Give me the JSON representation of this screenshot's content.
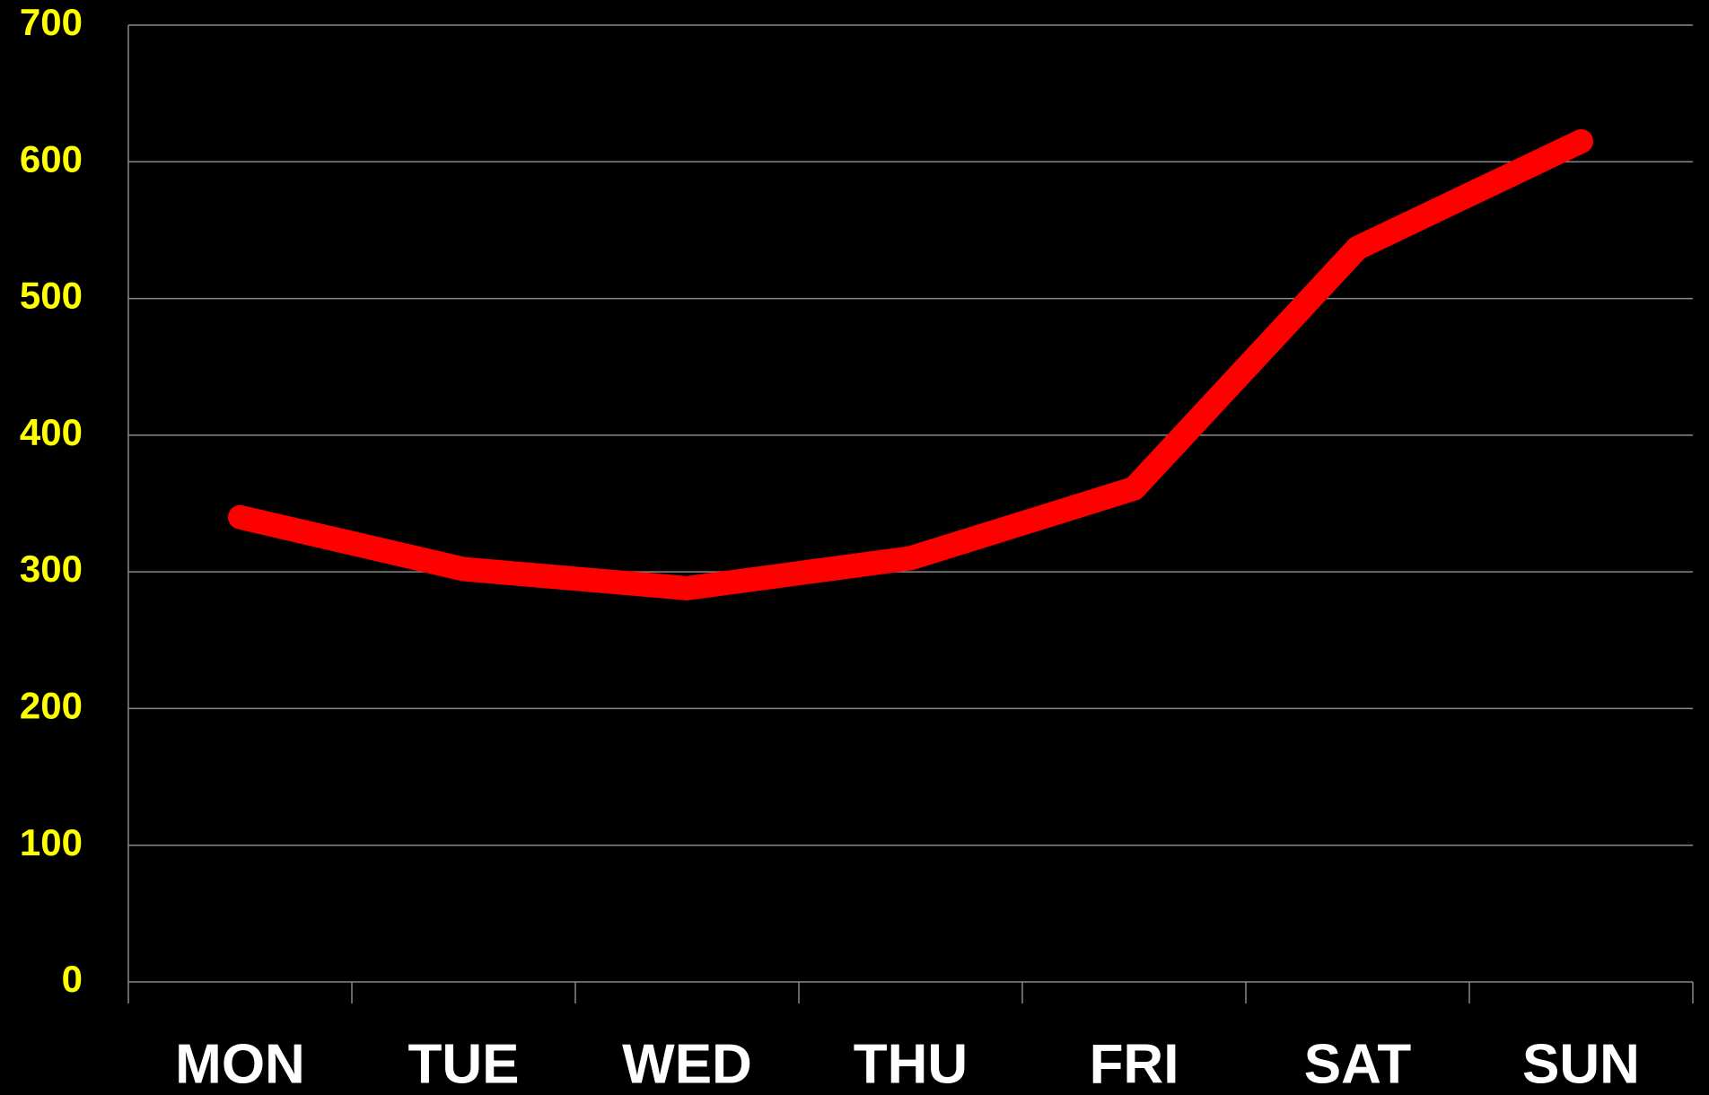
{
  "chart_data": {
    "type": "line",
    "categories": [
      "MON",
      "TUE",
      "WED",
      "THU",
      "FRI",
      "SAT",
      "SUN"
    ],
    "series": [
      {
        "color": "#ff0000",
        "values": [
          340,
          302,
          288,
          310,
          361,
          537,
          615
        ]
      }
    ],
    "ylim": [
      0,
      700
    ],
    "yticks": [
      0,
      100,
      200,
      300,
      400,
      500,
      600,
      700
    ],
    "grid": true
  }
}
